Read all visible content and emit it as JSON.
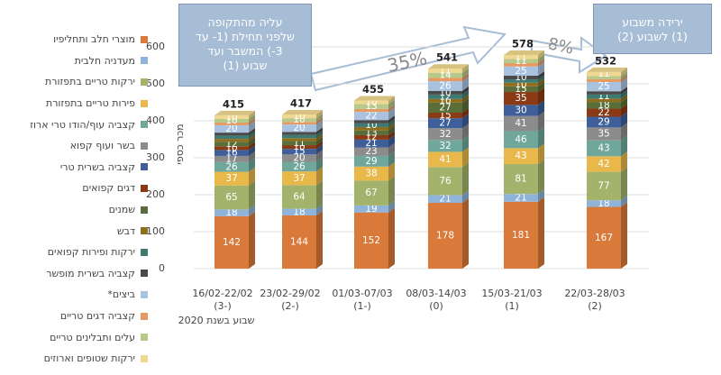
{
  "chart_data": {
    "type": "stacked-bar",
    "categories": [
      "16/02-22/02",
      "23/02-29/02",
      "01/03-07/03",
      "08/03-14/03",
      "15/03-21/03",
      "22/03-28/03"
    ],
    "category_notes": [
      "(3-)",
      "(2-)",
      "(1-)",
      "(0)",
      "(1)",
      "(2)"
    ],
    "x_label": "שבוע בשנת 2020",
    "y_label": "מכר כספי",
    "ylim": [
      0,
      600
    ],
    "yticks": [
      0,
      100,
      200,
      300,
      400,
      500,
      600
    ],
    "grid": true,
    "totals": [
      415,
      417,
      455,
      541,
      578,
      532
    ],
    "series": [
      {
        "name": "מוצרי חלב ותחליפיו",
        "color": "#d9793a",
        "values": [
          142,
          144,
          152,
          178,
          181,
          167
        ]
      },
      {
        "name": "מעדניה חלבית",
        "color": "#8fb3d9",
        "values": [
          18,
          18,
          19,
          21,
          21,
          18
        ]
      },
      {
        "name": "ירקות טריים בתפזורת",
        "color": "#a3b36b",
        "values": [
          65,
          64,
          67,
          76,
          81,
          77
        ]
      },
      {
        "name": "פירות טריים בתפזורת",
        "color": "#e8b84a",
        "values": [
          37,
          37,
          38,
          41,
          43,
          42
        ]
      },
      {
        "name": "קצביה עוף/הודו טרי ארוז",
        "color": "#6fa89a",
        "values": [
          26,
          26,
          29,
          32,
          46,
          43
        ]
      },
      {
        "name": "בשר ועוף קפוא",
        "color": "#8c8c8c",
        "values": [
          17,
          20,
          23,
          32,
          41,
          35
        ]
      },
      {
        "name": "קצביה בשרית טרי",
        "color": "#3f5f9a",
        "values": [
          16,
          15,
          21,
          27,
          30,
          29
        ]
      },
      {
        "name": "דגים קפואים",
        "color": "#8a3b16",
        "values": [
          10,
          10,
          12,
          15,
          35,
          22
        ]
      },
      {
        "name": "שמנים",
        "color": "#5a6e3a",
        "values": [
          12,
          11,
          13,
          27,
          15,
          18
        ]
      },
      {
        "name": "דבש",
        "color": "#8f6f1f",
        "values": [
          8,
          8,
          9,
          10,
          10,
          9
        ]
      },
      {
        "name": "ירקות ופירות קפואים",
        "color": "#3f7a72",
        "values": [
          9,
          9,
          10,
          12,
          9,
          11
        ]
      },
      {
        "name": "קצביה בשרית מופשר",
        "color": "#4a4a4a",
        "values": [
          8,
          8,
          9,
          10,
          10,
          9
        ]
      },
      {
        "name": "ביצים*",
        "color": "#a9c2e0",
        "values": [
          20,
          20,
          22,
          26,
          25,
          25
        ]
      },
      {
        "name": "קצביה דגים טריים",
        "color": "#e59a62",
        "values": [
          7,
          7,
          8,
          9,
          9,
          8
        ]
      },
      {
        "name": "עלים ותבלינים טריים",
        "color": "#b7c98a",
        "values": [
          10,
          10,
          13,
          14,
          11,
          8
        ]
      },
      {
        "name": "ירקות שטופים וארוזים",
        "color": "#f0d890",
        "values": [
          10,
          10,
          10,
          11,
          11,
          11
        ]
      }
    ],
    "annotations": {
      "rise_box": [
        "עליה מהתקופה",
        "שלפני תחילת (1- עד",
        "3-) המשבר ועד",
        "שבוע (1)"
      ],
      "rise_pct": "35%",
      "drop_box": [
        "ירידה משבוע",
        "(1) לשבוע (2)"
      ],
      "drop_pct": "8%"
    }
  }
}
